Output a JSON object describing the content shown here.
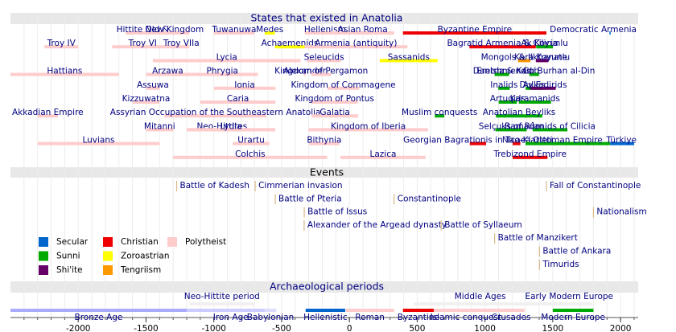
{
  "chart_data": {
    "type": "timeline",
    "xlim": [
      -2500,
      2130
    ],
    "xticks": [
      -2000,
      -1500,
      -1000,
      -500,
      0,
      500,
      1000,
      1500,
      2000
    ],
    "xgrid": [
      -2400,
      -2300,
      -2200,
      -2100,
      -2000,
      -1900,
      -1800,
      -1700,
      -1600,
      -1500,
      -1400,
      -1300,
      -1200,
      -1100,
      -1000,
      -900,
      -800,
      -700,
      -600,
      -500,
      -400,
      -300,
      -200,
      -100,
      0,
      100,
      200,
      300,
      400,
      500,
      600,
      700,
      800,
      900,
      1000,
      1100,
      1200,
      1300,
      1400,
      1500,
      1600,
      1700,
      1800,
      1900,
      2000,
      2100
    ],
    "legend": [
      [
        {
          "name": "Secular",
          "color": "#0066cc"
        },
        {
          "name": "Christian",
          "color": "#ee0000"
        },
        {
          "name": "Polytheist",
          "color": "#ffcccc"
        }
      ],
      [
        {
          "name": "Sunni",
          "color": "#00aa00"
        },
        {
          "name": "Zoroastrian",
          "color": "#ffff00"
        }
      ],
      [
        {
          "name": "Shi'ite",
          "color": "#660066"
        },
        {
          "name": "Tengriism",
          "color": "#ff9900"
        }
      ]
    ],
    "states": {
      "title": "States that existed in Anatolia",
      "rows": [
        [
          {
            "label": "Hittite Old &",
            "start": -1650,
            "end": -1400,
            "category": "Polytheist"
          },
          {
            "label": "New Kingdom",
            "start": -1400,
            "end": -1180,
            "category": "Polytheist"
          },
          {
            "label": "Tuwanuwa",
            "start": -1000,
            "end": -700,
            "category": "Polytheist"
          },
          {
            "label": "Medes",
            "start": -625,
            "end": -550,
            "category": "Zoroastrian"
          },
          {
            "label": "Hellenism",
            "start": -330,
            "end": -30,
            "category": "Polytheist"
          },
          {
            "label": "Asian Roma",
            "start": -133,
            "end": 330,
            "category": "Polytheist"
          },
          {
            "label": "Byzantine Empire",
            "start": 395,
            "end": 1453,
            "category": "Christian"
          },
          {
            "label": "Democratic Armenia",
            "start": 1918,
            "end": 1920,
            "category": "Secular"
          }
        ],
        [
          {
            "label": "Troy IV",
            "start": -2250,
            "end": -2000,
            "category": "Polytheist"
          },
          {
            "label": "Troy VI",
            "start": -1750,
            "end": -1300,
            "category": "Polytheist"
          },
          {
            "label": "Troy VIIa",
            "start": -1300,
            "end": -1180,
            "category": "Polytheist"
          },
          {
            "label": "Achaemenids",
            "start": -550,
            "end": -330,
            "category": "Zoroastrian"
          },
          {
            "label": "Armenia (antiquity)",
            "start": -331,
            "end": 428,
            "category": "Polytheist"
          },
          {
            "label": "Bagratid Armenia & Cilicia",
            "start": 885,
            "end": 1375,
            "category": "Christian"
          },
          {
            "label": "Ak Koyunlu",
            "start": 1378,
            "end": 1501,
            "category": "Sunni"
          }
        ],
        [
          {
            "label": "Lycia",
            "start": -1450,
            "end": -360,
            "category": "Polytheist"
          },
          {
            "label": "Seleucids",
            "start": -312,
            "end": -63,
            "category": "Polytheist"
          },
          {
            "label": "Sassanids",
            "start": 224,
            "end": 651,
            "category": "Zoroastrian"
          },
          {
            "label": "Mongols & Ilkhanate",
            "start": 1243,
            "end": 1335,
            "category": "Tengriism"
          },
          {
            "label": "Kara Koyunlu",
            "start": 1375,
            "end": 1468,
            "category": "Shi'ite"
          }
        ],
        [
          {
            "label": "Hattians",
            "start": -2500,
            "end": -1700,
            "category": "Polytheist"
          },
          {
            "label": "Arzawa",
            "start": -1500,
            "end": -1180,
            "category": "Polytheist"
          },
          {
            "label": "Phrygia",
            "start": -1200,
            "end": -675,
            "category": "Polytheist"
          },
          {
            "label": "Alexander",
            "start": -336,
            "end": -323,
            "category": "Polytheist"
          },
          {
            "label": "Kingdom of Pergamon",
            "start": -282,
            "end": -133,
            "category": "Polytheist"
          },
          {
            "label": "Danishmends",
            "start": 1071,
            "end": 1178,
            "category": "Sunni"
          },
          {
            "label": "Cob",
            "start": 1327,
            "end": 1352,
            "category": "Sunni"
          },
          {
            "label": "Eretna & Kadı Burhan al-Din",
            "start": 1352,
            "end": 1398,
            "category": "Sunni"
          }
        ],
        [
          {
            "label": "Assuwa",
            "start": -1500,
            "end": -1400,
            "category": "Polytheist"
          },
          {
            "label": "Ionia",
            "start": -1000,
            "end": -545,
            "category": "Polytheist"
          },
          {
            "label": "Kingdom of Commagene",
            "start": -163,
            "end": 72,
            "category": "Polytheist"
          },
          {
            "label": "Inalids",
            "start": 1098,
            "end": 1183,
            "category": "Sunni"
          },
          {
            "label": "Ay Es",
            "start": 1300,
            "end": 1425,
            "category": "Sunni"
          },
          {
            "label": "Dulkadirids",
            "start": 1337,
            "end": 1522,
            "category": "Shi'ite"
          }
        ],
        [
          {
            "label": "Kizzuwatna",
            "start": -1600,
            "end": -1400,
            "category": "Polytheist"
          },
          {
            "label": "Caria",
            "start": -1100,
            "end": -545,
            "category": "Polytheist"
          },
          {
            "label": "Kingdom of Pontus",
            "start": -281,
            "end": 62,
            "category": "Polytheist"
          },
          {
            "label": "Artuqids",
            "start": 1101,
            "end": 1235,
            "category": "Sunni"
          },
          {
            "label": "Karamanids",
            "start": 1250,
            "end": 1487,
            "category": "Sunni"
          }
        ],
        [
          {
            "label": "Akkadian Empire",
            "start": -2300,
            "end": -2150,
            "category": "Polytheist"
          },
          {
            "label": "Assyrian Occupation of the Southeastern Anatolia",
            "start": -1365,
            "end": -612,
            "category": "Polytheist"
          },
          {
            "label": "Galatia",
            "start": -278,
            "end": 64,
            "category": "Polytheist"
          },
          {
            "label": "Muslim conquests",
            "start": 630,
            "end": 700,
            "category": "Sunni"
          },
          {
            "label": "Anatolian Beyliks",
            "start": 1081,
            "end": 1423,
            "category": "Sunni"
          }
        ],
        [
          {
            "label": "Mitanni",
            "start": -1500,
            "end": -1300,
            "category": "Polytheist"
          },
          {
            "label": "Neo-Hittites",
            "start": -1180,
            "end": -700,
            "category": "Polytheist"
          },
          {
            "label": "Lydia",
            "start": -1200,
            "end": -546,
            "category": "Polytheist"
          },
          {
            "label": "Kingdom of Iberia",
            "start": -302,
            "end": 580,
            "category": "Polytheist"
          },
          {
            "label": "Selçuks of Rûm",
            "start": 1077,
            "end": 1308,
            "category": "Sunni"
          },
          {
            "label": "Ramadanids of Cilicia",
            "start": 1352,
            "end": 1608,
            "category": "Sunni"
          }
        ],
        [
          {
            "label": "Luvians",
            "start": -2300,
            "end": -1400,
            "category": "Polytheist"
          },
          {
            "label": "Urartu",
            "start": -860,
            "end": -590,
            "category": "Polytheist"
          },
          {
            "label": "Bithynia",
            "start": -297,
            "end": -74,
            "category": "Polytheist"
          },
          {
            "label": "Georgian Bagrationis in Tao-Klarjeti",
            "start": 888,
            "end": 1008,
            "category": "Christian"
          },
          {
            "label": "Nicaea",
            "start": 1204,
            "end": 1261,
            "category": "Christian"
          },
          {
            "label": "Ottoman Empire",
            "start": 1299,
            "end": 1922,
            "category": "Sunni"
          },
          {
            "label": "Türkiye",
            "start": 1923,
            "end": 2100,
            "category": "Secular"
          }
        ],
        [
          {
            "label": "Colchis",
            "start": -1300,
            "end": -164,
            "category": "Polytheist"
          },
          {
            "label": "Lazica",
            "start": -66,
            "end": 562,
            "category": "Polytheist"
          },
          {
            "label": "Trebizond Empire",
            "start": 1204,
            "end": 1461,
            "category": "Christian"
          }
        ]
      ]
    },
    "events": {
      "title": "Events",
      "rows": [
        [
          {
            "label": "Battle of Kadesh",
            "year": -1274
          },
          {
            "label": "Cimmerian invasion",
            "year": -695
          },
          {
            "label": "Fall of Constantinople",
            "year": 1453
          }
        ],
        [
          {
            "label": "Battle of Pteria",
            "year": -547
          },
          {
            "label": "Constantinople",
            "year": 330
          }
        ],
        [
          {
            "label": "Battle of Issus",
            "year": -333
          },
          {
            "label": "Nationalism",
            "year": 1800
          }
        ],
        [
          {
            "label": "Alexander of the Argead dynasty",
            "year": -334
          },
          {
            "label": "Battle of Syllaeum",
            "year": 677
          }
        ],
        [
          {
            "label": "Battle of Manzikert",
            "year": 1071
          }
        ],
        [
          {
            "label": "Battle of Ankara",
            "year": 1402
          }
        ],
        [
          {
            "label": "Timurids",
            "year": 1402
          }
        ]
      ]
    },
    "periods": {
      "title": "Archaeological periods",
      "rows": [
        [
          {
            "label": "Neo-Hittite period",
            "start": -1180,
            "end": -700,
            "color": "#f0f0f0"
          },
          {
            "label": "Middle Ages",
            "start": 476,
            "end": 1453,
            "color": "#f0f0f0"
          },
          {
            "label": "Early Modern Europe",
            "start": 1453,
            "end": 1789,
            "color": "#f0f0f0"
          }
        ],
        [
          {
            "label": "Bronze Age",
            "start": -2500,
            "end": -1200,
            "color": "#aaaaff"
          },
          {
            "label": "Iron Age",
            "start": -1200,
            "end": -550,
            "color": "#ccccff"
          },
          {
            "label": "Babylonian",
            "start": -626,
            "end": -539,
            "color": "#ddddff"
          },
          {
            "label": "Hellenistic",
            "start": -323,
            "end": -31,
            "color": "#0066cc"
          },
          {
            "label": "Roman",
            "start": -27,
            "end": 330,
            "color": "#ffcccc"
          },
          {
            "label": "Byzantine",
            "start": 395,
            "end": 622,
            "color": "#ee0000"
          },
          {
            "label": "Islamic conquest",
            "start": 622,
            "end": 1095,
            "color": "#ffcccc"
          },
          {
            "label": "Crusades",
            "start": 1095,
            "end": 1291,
            "color": "#ffcccc"
          },
          {
            "label": "Modern Europe",
            "start": 1500,
            "end": 1800,
            "color": "#00aa00"
          }
        ]
      ]
    }
  }
}
